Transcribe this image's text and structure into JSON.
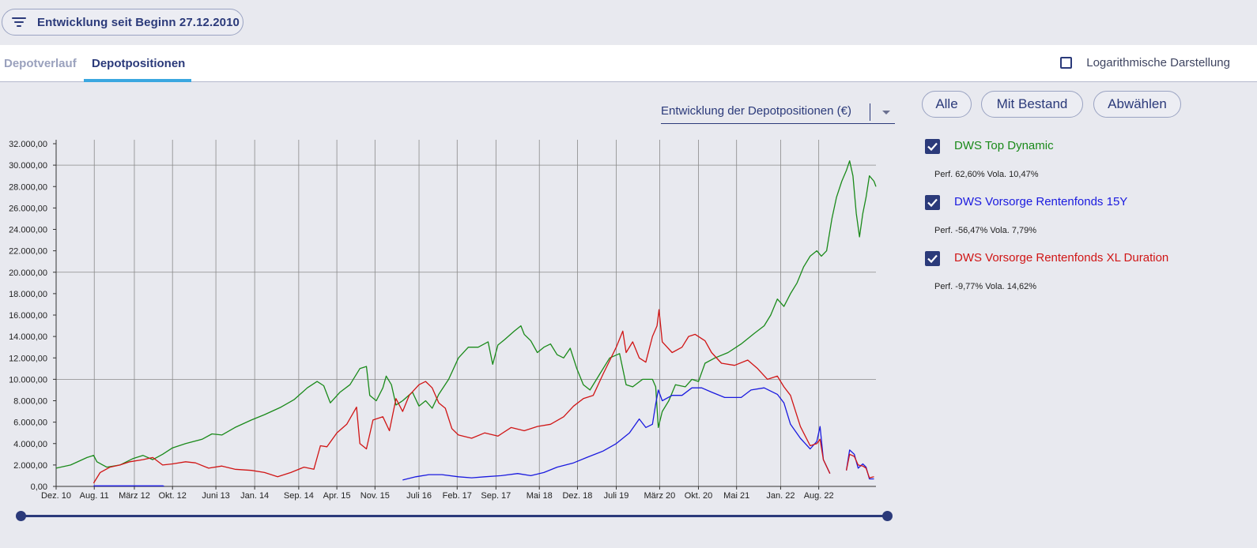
{
  "header": {
    "filter_label": "Entwicklung seit Beginn 27.12.2010"
  },
  "tabs": [
    {
      "label": "Depotverlauf",
      "active": false
    },
    {
      "label": "Depotpositionen",
      "active": true
    }
  ],
  "log_toggle": {
    "label": "Logarithmische Darstellung",
    "checked": false
  },
  "view_select": {
    "value": "Entwicklung der Depotpositionen (€)"
  },
  "buttons": {
    "all": "Alle",
    "with_holdings": "Mit Bestand",
    "deselect": "Abwählen"
  },
  "legend": [
    {
      "name": "DWS Top Dynamic",
      "stats": "Perf. 62,60% Vola. 10,47%",
      "color": "#1a8a1a",
      "checked": true
    },
    {
      "name": "DWS Vorsorge Rentenfonds 15Y",
      "stats": "Perf. -56,47% Vola. 7,79%",
      "color": "#1a1adf",
      "checked": true
    },
    {
      "name": "DWS Vorsorge Rentenfonds XL Duration",
      "stats": "Perf. -9,77% Vola. 14,62%",
      "color": "#d01515",
      "checked": true
    }
  ],
  "chart_data": {
    "type": "line",
    "y_ticks": [
      "0,00",
      "2.000,00",
      "4.000,00",
      "6.000,00",
      "8.000,00",
      "10.000,00",
      "12.000,00",
      "14.000,00",
      "16.000,00",
      "18.000,00",
      "20.000,00",
      "22.000,00",
      "24.000,00",
      "26.000,00",
      "28.000,00",
      "30.000,00",
      "32.000,00"
    ],
    "x_ticks": [
      "Dez. 10",
      "Aug. 11",
      "März 12",
      "Okt. 12",
      "Juni 13",
      "Jan. 14",
      "Sep. 14",
      "Apr. 15",
      "Nov. 15",
      "Juli 16",
      "Feb. 17",
      "Sep. 17",
      "Mai 18",
      "Dez. 18",
      "Juli 19",
      "März 20",
      "Okt. 20",
      "Mai 21",
      "Jan. 22",
      "Aug. 22"
    ],
    "ylim": [
      0,
      32000
    ],
    "xlim": [
      2010.98,
      2023.45
    ],
    "major_gridlines_y": [
      10000,
      20000,
      30000
    ],
    "series": [
      {
        "name": "DWS Top Dynamic",
        "color": "#1a8a1a",
        "points": [
          [
            2010.98,
            1700
          ],
          [
            2011.2,
            2000
          ],
          [
            2011.45,
            2700
          ],
          [
            2011.55,
            2900
          ],
          [
            2011.6,
            2300
          ],
          [
            2011.75,
            1800
          ],
          [
            2011.95,
            2000
          ],
          [
            2012.15,
            2600
          ],
          [
            2012.3,
            2900
          ],
          [
            2012.45,
            2500
          ],
          [
            2012.6,
            3000
          ],
          [
            2012.75,
            3600
          ],
          [
            2012.95,
            4000
          ],
          [
            2013.2,
            4400
          ],
          [
            2013.35,
            4900
          ],
          [
            2013.5,
            4800
          ],
          [
            2013.7,
            5500
          ],
          [
            2013.95,
            6200
          ],
          [
            2014.15,
            6700
          ],
          [
            2014.4,
            7400
          ],
          [
            2014.6,
            8100
          ],
          [
            2014.8,
            9200
          ],
          [
            2014.95,
            9800
          ],
          [
            2015.05,
            9400
          ],
          [
            2015.15,
            7800
          ],
          [
            2015.3,
            8800
          ],
          [
            2015.45,
            9500
          ],
          [
            2015.6,
            11000
          ],
          [
            2015.7,
            11200
          ],
          [
            2015.75,
            8500
          ],
          [
            2015.85,
            8000
          ],
          [
            2015.95,
            9200
          ],
          [
            2016.0,
            10300
          ],
          [
            2016.08,
            9500
          ],
          [
            2016.15,
            7600
          ],
          [
            2016.25,
            8000
          ],
          [
            2016.4,
            8800
          ],
          [
            2016.5,
            7500
          ],
          [
            2016.6,
            8000
          ],
          [
            2016.7,
            7300
          ],
          [
            2016.8,
            8600
          ],
          [
            2016.95,
            10000
          ],
          [
            2017.1,
            12000
          ],
          [
            2017.25,
            13000
          ],
          [
            2017.4,
            13000
          ],
          [
            2017.55,
            13500
          ],
          [
            2017.62,
            11400
          ],
          [
            2017.7,
            13200
          ],
          [
            2017.8,
            13700
          ],
          [
            2017.95,
            14500
          ],
          [
            2018.05,
            15000
          ],
          [
            2018.1,
            14200
          ],
          [
            2018.2,
            13600
          ],
          [
            2018.3,
            12500
          ],
          [
            2018.4,
            13000
          ],
          [
            2018.5,
            13300
          ],
          [
            2018.6,
            12300
          ],
          [
            2018.7,
            12000
          ],
          [
            2018.8,
            12900
          ],
          [
            2018.9,
            11000
          ],
          [
            2019.0,
            9500
          ],
          [
            2019.1,
            9000
          ],
          [
            2019.25,
            10500
          ],
          [
            2019.4,
            12000
          ],
          [
            2019.55,
            12400
          ],
          [
            2019.65,
            9500
          ],
          [
            2019.75,
            9300
          ],
          [
            2019.9,
            10000
          ],
          [
            2020.05,
            10000
          ],
          [
            2020.1,
            9300
          ],
          [
            2020.14,
            5500
          ],
          [
            2020.2,
            7000
          ],
          [
            2020.3,
            8000
          ],
          [
            2020.4,
            9500
          ],
          [
            2020.55,
            9300
          ],
          [
            2020.65,
            10000
          ],
          [
            2020.75,
            9800
          ],
          [
            2020.85,
            11500
          ],
          [
            2021.0,
            12000
          ],
          [
            2021.2,
            12500
          ],
          [
            2021.4,
            13300
          ],
          [
            2021.6,
            14300
          ],
          [
            2021.75,
            15000
          ],
          [
            2021.85,
            16000
          ],
          [
            2021.95,
            17500
          ],
          [
            2022.05,
            16800
          ],
          [
            2022.15,
            18000
          ],
          [
            2022.25,
            19000
          ],
          [
            2022.35,
            20500
          ],
          [
            2022.45,
            21500
          ],
          [
            2022.55,
            22000
          ],
          [
            2022.62,
            21500
          ],
          [
            2022.7,
            22000
          ],
          [
            2022.78,
            25000
          ],
          [
            2022.85,
            27000
          ],
          [
            2022.93,
            28500
          ],
          [
            2023.0,
            29500
          ],
          [
            2023.05,
            30400
          ],
          [
            2023.1,
            29000
          ],
          [
            2023.15,
            25500
          ],
          [
            2023.2,
            23300
          ],
          [
            2023.25,
            25500
          ],
          [
            2023.3,
            27000
          ],
          [
            2023.35,
            29000
          ],
          [
            2023.42,
            28500
          ],
          [
            2023.45,
            28000
          ]
        ]
      },
      {
        "name": "DWS Vorsorge Rentenfonds 15Y",
        "color": "#1a1adf",
        "points": [
          [
            2011.55,
            50
          ],
          [
            2012.0,
            50
          ],
          [
            2012.6,
            50
          ],
          [
            2012.62,
            30
          ],
          [
            null,
            null
          ],
          [
            2016.25,
            600
          ],
          [
            2016.45,
            900
          ],
          [
            2016.65,
            1100
          ],
          [
            2016.85,
            1100
          ],
          [
            2017.1,
            900
          ],
          [
            2017.3,
            800
          ],
          [
            2017.5,
            900
          ],
          [
            2017.75,
            1000
          ],
          [
            2018.0,
            1200
          ],
          [
            2018.2,
            1000
          ],
          [
            2018.4,
            1300
          ],
          [
            2018.6,
            1800
          ],
          [
            2018.85,
            2200
          ],
          [
            2019.05,
            2700
          ],
          [
            2019.3,
            3300
          ],
          [
            2019.5,
            4000
          ],
          [
            2019.7,
            5000
          ],
          [
            2019.85,
            6300
          ],
          [
            2019.95,
            5500
          ],
          [
            2020.05,
            5800
          ],
          [
            2020.1,
            7700
          ],
          [
            2020.14,
            9000
          ],
          [
            2020.2,
            8000
          ],
          [
            2020.35,
            8500
          ],
          [
            2020.5,
            8500
          ],
          [
            2020.65,
            9200
          ],
          [
            2020.8,
            9200
          ],
          [
            2020.95,
            8800
          ],
          [
            2021.15,
            8300
          ],
          [
            2021.4,
            8300
          ],
          [
            2021.55,
            9000
          ],
          [
            2021.75,
            9200
          ],
          [
            2021.95,
            8600
          ],
          [
            2022.05,
            7800
          ],
          [
            2022.15,
            5800
          ],
          [
            2022.3,
            4500
          ],
          [
            2022.45,
            3500
          ],
          [
            2022.55,
            4200
          ],
          [
            2022.6,
            5600
          ],
          [
            2022.65,
            2500
          ],
          [
            2022.75,
            1200
          ],
          [
            null,
            null
          ],
          [
            2023.0,
            1500
          ],
          [
            2023.05,
            3400
          ],
          [
            2023.12,
            3000
          ],
          [
            2023.18,
            1700
          ],
          [
            2023.25,
            2100
          ],
          [
            2023.3,
            1800
          ],
          [
            2023.35,
            700
          ],
          [
            2023.42,
            700
          ]
        ]
      },
      {
        "name": "DWS Vorsorge Rentenfonds XL Duration",
        "color": "#d01515",
        "points": [
          [
            2011.55,
            300
          ],
          [
            2011.65,
            1300
          ],
          [
            2011.8,
            1800
          ],
          [
            2011.95,
            2000
          ],
          [
            2012.1,
            2300
          ],
          [
            2012.3,
            2500
          ],
          [
            2012.45,
            2700
          ],
          [
            2012.6,
            2000
          ],
          [
            2012.75,
            2100
          ],
          [
            2012.95,
            2300
          ],
          [
            2013.1,
            2200
          ],
          [
            2013.3,
            1700
          ],
          [
            2013.5,
            1900
          ],
          [
            2013.7,
            1600
          ],
          [
            2013.95,
            1500
          ],
          [
            2014.15,
            1300
          ],
          [
            2014.35,
            900
          ],
          [
            2014.55,
            1300
          ],
          [
            2014.75,
            1800
          ],
          [
            2014.9,
            1600
          ],
          [
            2015.0,
            3800
          ],
          [
            2015.1,
            3700
          ],
          [
            2015.25,
            5000
          ],
          [
            2015.4,
            5800
          ],
          [
            2015.55,
            7400
          ],
          [
            2015.6,
            4000
          ],
          [
            2015.7,
            3500
          ],
          [
            2015.8,
            6200
          ],
          [
            2015.95,
            6500
          ],
          [
            2016.05,
            5200
          ],
          [
            2016.15,
            8200
          ],
          [
            2016.25,
            7000
          ],
          [
            2016.35,
            8500
          ],
          [
            2016.5,
            9500
          ],
          [
            2016.6,
            9800
          ],
          [
            2016.7,
            9200
          ],
          [
            2016.8,
            7800
          ],
          [
            2016.9,
            7300
          ],
          [
            2017.0,
            5400
          ],
          [
            2017.1,
            4800
          ],
          [
            2017.3,
            4500
          ],
          [
            2017.5,
            5000
          ],
          [
            2017.7,
            4700
          ],
          [
            2017.9,
            5500
          ],
          [
            2018.1,
            5200
          ],
          [
            2018.3,
            5600
          ],
          [
            2018.5,
            5800
          ],
          [
            2018.7,
            6500
          ],
          [
            2018.85,
            7500
          ],
          [
            2019.0,
            8200
          ],
          [
            2019.15,
            8500
          ],
          [
            2019.3,
            10500
          ],
          [
            2019.5,
            13000
          ],
          [
            2019.6,
            14500
          ],
          [
            2019.65,
            12500
          ],
          [
            2019.75,
            13500
          ],
          [
            2019.85,
            12000
          ],
          [
            2019.95,
            11600
          ],
          [
            2020.05,
            14000
          ],
          [
            2020.12,
            15000
          ],
          [
            2020.15,
            16500
          ],
          [
            2020.2,
            13500
          ],
          [
            2020.35,
            12500
          ],
          [
            2020.5,
            13000
          ],
          [
            2020.6,
            14000
          ],
          [
            2020.7,
            14200
          ],
          [
            2020.85,
            13600
          ],
          [
            2020.95,
            12500
          ],
          [
            2021.1,
            11500
          ],
          [
            2021.3,
            11300
          ],
          [
            2021.5,
            11800
          ],
          [
            2021.65,
            11000
          ],
          [
            2021.8,
            10000
          ],
          [
            2021.95,
            10300
          ],
          [
            2022.05,
            9300
          ],
          [
            2022.15,
            8500
          ],
          [
            2022.3,
            5600
          ],
          [
            2022.45,
            3800
          ],
          [
            2022.55,
            4000
          ],
          [
            2022.6,
            4400
          ],
          [
            2022.65,
            2500
          ],
          [
            2022.75,
            1200
          ],
          [
            null,
            null
          ],
          [
            2023.0,
            1500
          ],
          [
            2023.05,
            3000
          ],
          [
            2023.12,
            2800
          ],
          [
            2023.18,
            2000
          ],
          [
            2023.25,
            1900
          ],
          [
            2023.3,
            1700
          ],
          [
            2023.35,
            800
          ],
          [
            2023.42,
            900
          ]
        ]
      }
    ],
    "grid": true,
    "legend_position": "right"
  },
  "range_slider": {
    "start": 0,
    "end": 1
  }
}
